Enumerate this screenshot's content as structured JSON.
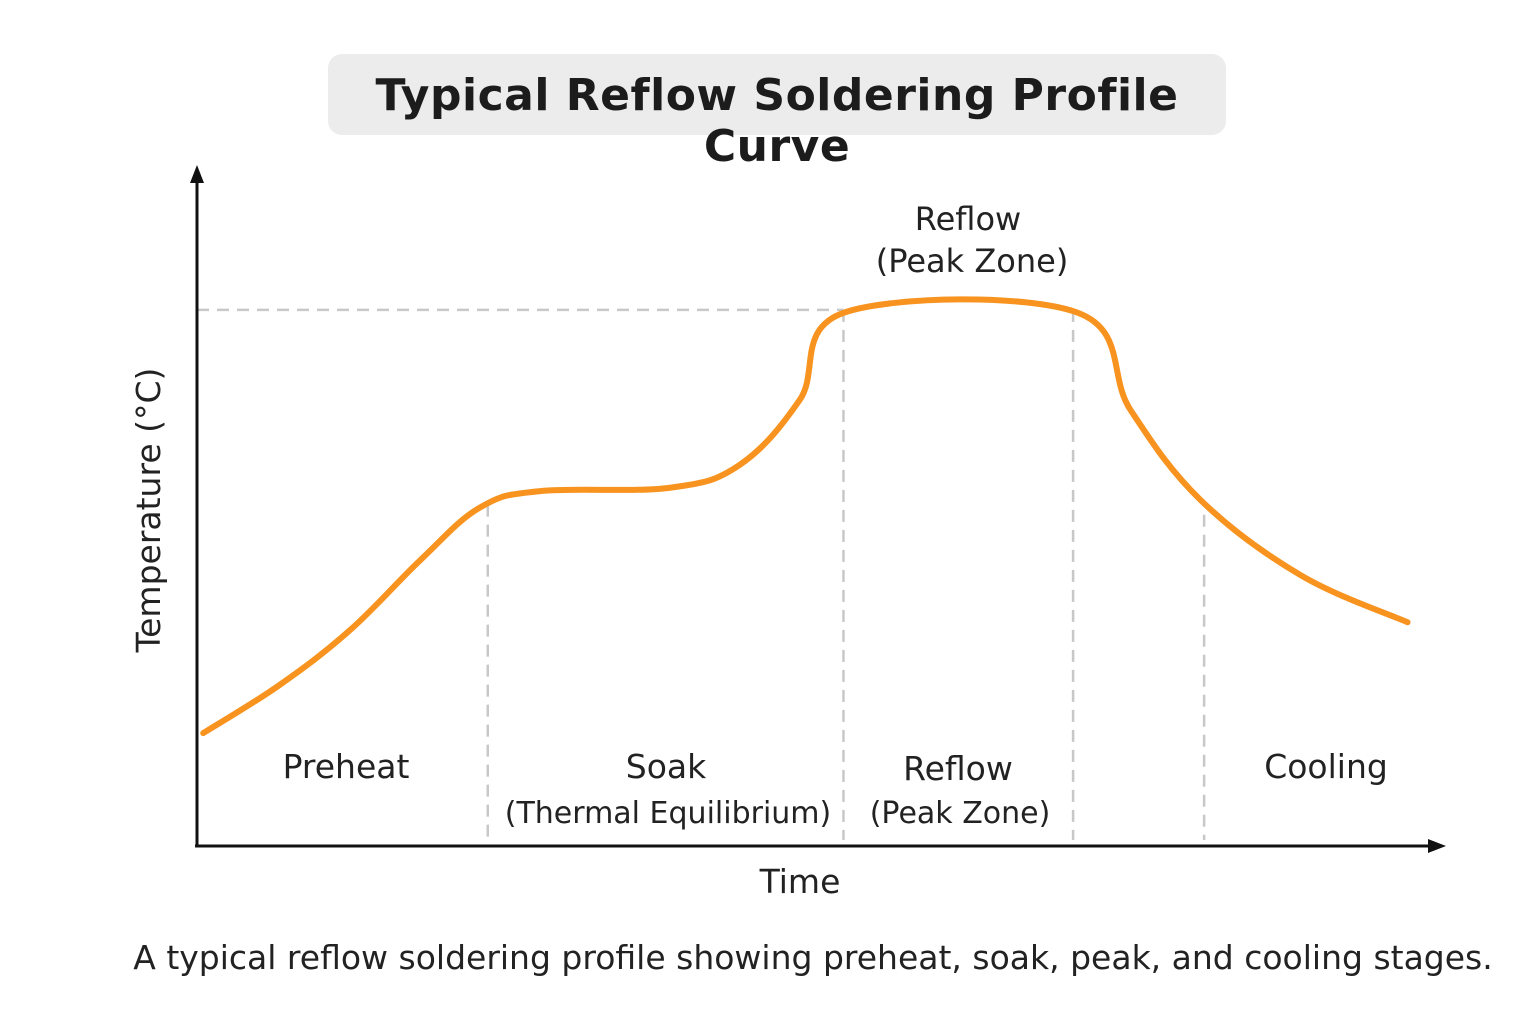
{
  "chart_data": {
    "type": "line",
    "title": "Typical Reflow Soldering Profile Curve",
    "xlabel": "Time",
    "ylabel": "Temperature (°C)",
    "caption": "A typical reflow soldering profile showing preheat, soak, peak, and cooling stages.",
    "xlim": [
      0,
      100
    ],
    "ylim": [
      0,
      100
    ],
    "grid": false,
    "legend": "none",
    "series": [
      {
        "color": "#f7931e",
        "x": [
          0.5,
          6.6,
          12.3,
          17.9,
          22.7,
          27.5,
          37.9,
          43.5,
          48.3,
          52,
          70.4,
          74.8,
          80.4,
          88.4,
          97
        ],
        "y": [
          16.7,
          23.8,
          32,
          42.3,
          50.1,
          52.5,
          53,
          56.4,
          66,
          79,
          79,
          64.5,
          51.2,
          40.1,
          33.1
        ]
      }
    ],
    "peak_line": {
      "y": 79.3,
      "color": "#c8c8c8"
    },
    "zone_boundaries": [
      23.3,
      51.8,
      70.2,
      80.7
    ],
    "zones": [
      {
        "label": "Preheat",
        "sub": ""
      },
      {
        "label": "Soak",
        "sub": "(Thermal Equilibrium)"
      },
      {
        "label": "Reflow",
        "sub": "(Peak Zone)"
      },
      {
        "label": "Cooling",
        "sub": ""
      }
    ],
    "annotation": {
      "line1": "Reflow",
      "line2": "(Peak Zone)"
    }
  }
}
